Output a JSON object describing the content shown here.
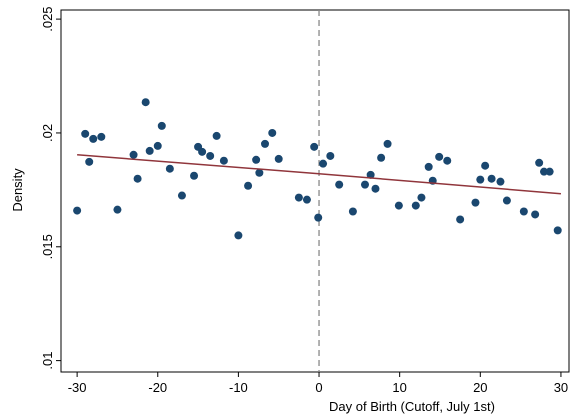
{
  "chart_data": {
    "type": "scatter",
    "x_label": "Day of Birth (Cutoff, July 1st)",
    "y_label": "Density",
    "x": [
      -30,
      -29,
      -28.5,
      -28,
      -27,
      -25,
      -23,
      -22.5,
      -21.5,
      -21,
      -20,
      -19.5,
      -18.5,
      -17,
      -15.5,
      -15,
      -14.5,
      -13.5,
      -12.7,
      -11.8,
      -10,
      -8.8,
      -7.8,
      -7.4,
      -6.7,
      -5.8,
      -5,
      -2.5,
      -1.5,
      -0.6,
      -0.1,
      0.5,
      1.4,
      2.5,
      4.2,
      5.7,
      6.4,
      7,
      7.7,
      8.5,
      9.9,
      12,
      12.7,
      13.6,
      14.1,
      14.9,
      15.9,
      17.5,
      19.4,
      20,
      20.6,
      21.4,
      22.5,
      23.3,
      25.4,
      26.8,
      27.3,
      27.9,
      28.6,
      29.6
    ],
    "values": [
      0.01659,
      0.01996,
      0.01873,
      0.01974,
      0.01983,
      0.01663,
      0.01904,
      0.01799,
      0.02135,
      0.01921,
      0.01943,
      0.02031,
      0.01843,
      0.01725,
      0.01812,
      0.01939,
      0.01917,
      0.01899,
      0.01987,
      0.01878,
      0.0155,
      0.01768,
      0.01882,
      0.01825,
      0.01952,
      0.02,
      0.01886,
      0.01716,
      0.01707,
      0.01939,
      0.01628,
      0.01865,
      0.01899,
      0.01773,
      0.01655,
      0.01773,
      0.01816,
      0.01755,
      0.01891,
      0.01952,
      0.01681,
      0.01681,
      0.01716,
      0.01851,
      0.0179,
      0.01895,
      0.01878,
      0.0162,
      0.01694,
      0.01795,
      0.01856,
      0.01799,
      0.01786,
      0.01703,
      0.01655,
      0.01642,
      0.01869,
      0.0183,
      0.0183,
      0.01572
    ],
    "color": "#1a476f",
    "fit_lines": [
      {
        "x": [
          -30,
          0
        ],
        "values": [
          0.01904,
          0.01821
        ]
      },
      {
        "x": [
          0,
          30
        ],
        "values": [
          0.01821,
          0.01733
        ]
      }
    ],
    "fit_color": "#90353b",
    "cutoff": 0,
    "xlim": [
      -32,
      31
    ],
    "ylim": [
      0.0095,
      0.0254
    ],
    "xticks": [
      -30,
      -20,
      -10,
      0,
      10,
      20,
      30
    ],
    "yticks": [
      {
        "value": 0.01,
        "label": ".01"
      },
      {
        "value": 0.015,
        "label": ".015"
      },
      {
        "value": 0.02,
        "label": ".02"
      },
      {
        "value": 0.025,
        "label": ".025"
      }
    ]
  }
}
